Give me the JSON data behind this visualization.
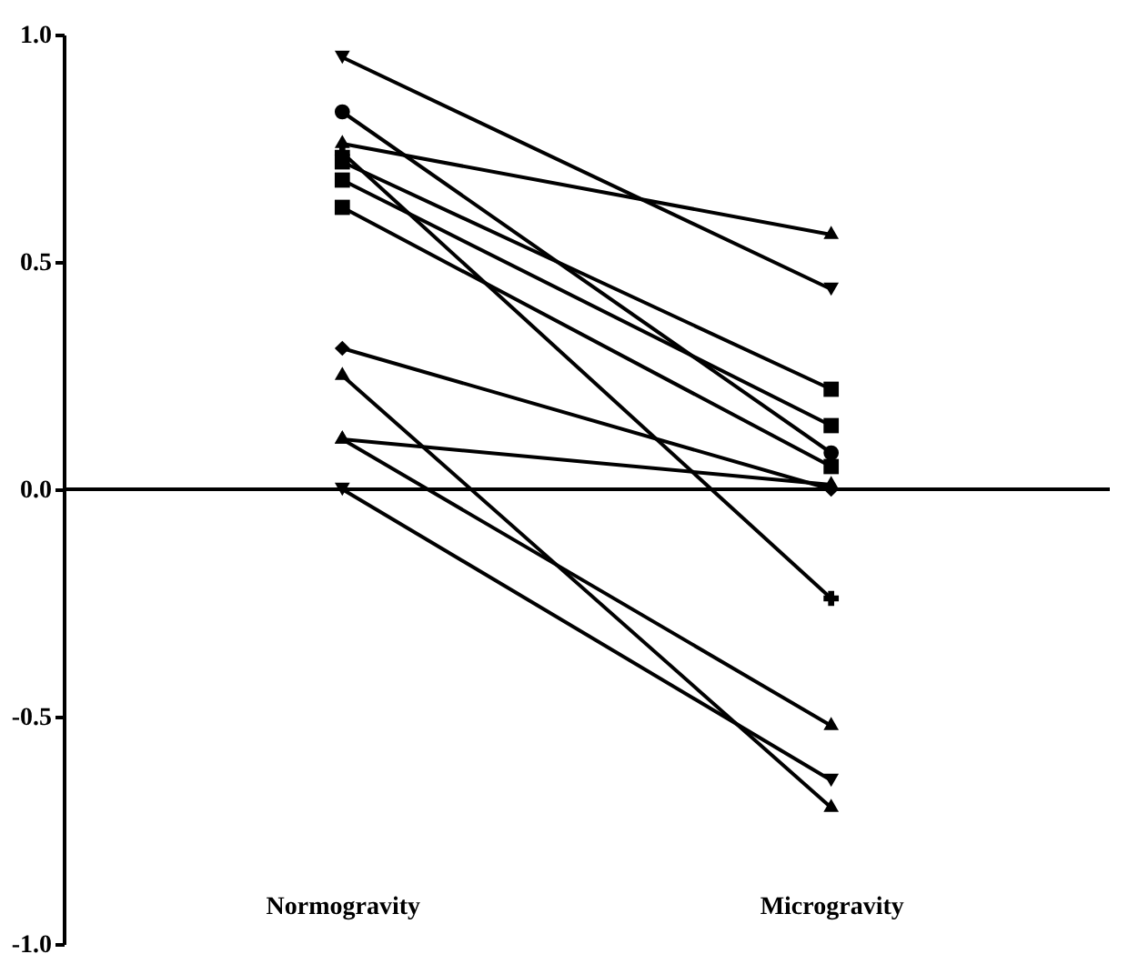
{
  "chart_data": {
    "type": "line",
    "categories": [
      "Normogravity",
      "Microgravity"
    ],
    "series": [
      {
        "color": "#000000",
        "marker": "triangle-down",
        "values": [
          0.95,
          0.44
        ]
      },
      {
        "color": "#000000",
        "marker": "circle",
        "values": [
          0.83,
          0.08
        ]
      },
      {
        "color": "#000000",
        "marker": "triangle",
        "values": [
          0.76,
          0.56
        ]
      },
      {
        "color": "#000000",
        "marker": "cross",
        "values": [
          0.74,
          -0.24
        ]
      },
      {
        "color": "#000000",
        "marker": "square",
        "values": [
          0.72,
          0.22
        ]
      },
      {
        "color": "#000000",
        "marker": "square",
        "values": [
          0.68,
          0.14
        ]
      },
      {
        "color": "#000000",
        "marker": "square",
        "values": [
          0.62,
          0.05
        ]
      },
      {
        "color": "#000000",
        "marker": "diamond",
        "values": [
          0.31,
          0.0
        ]
      },
      {
        "color": "#000000",
        "marker": "triangle",
        "values": [
          0.25,
          -0.7
        ]
      },
      {
        "color": "#000000",
        "marker": "triangle",
        "values": [
          0.11,
          0.01
        ]
      },
      {
        "color": "#000000",
        "marker": "triangle",
        "values": [
          0.11,
          -0.52
        ]
      },
      {
        "color": "#000000",
        "marker": "triangle-down",
        "values": [
          0.0,
          -0.64
        ]
      }
    ],
    "ylim": [
      -1.0,
      1.0
    ],
    "yticks": [
      {
        "value": -1.0,
        "label": "-1.0"
      },
      {
        "value": -0.5,
        "label": "-0.5"
      },
      {
        "value": 0.0,
        "label": "0.0"
      },
      {
        "value": 0.5,
        "label": "0.5"
      },
      {
        "value": 1.0,
        "label": "1.0"
      }
    ],
    "ref_lines": [
      {
        "axis": "y",
        "value": 0.0,
        "color": "#000000"
      }
    ],
    "grid": false
  }
}
